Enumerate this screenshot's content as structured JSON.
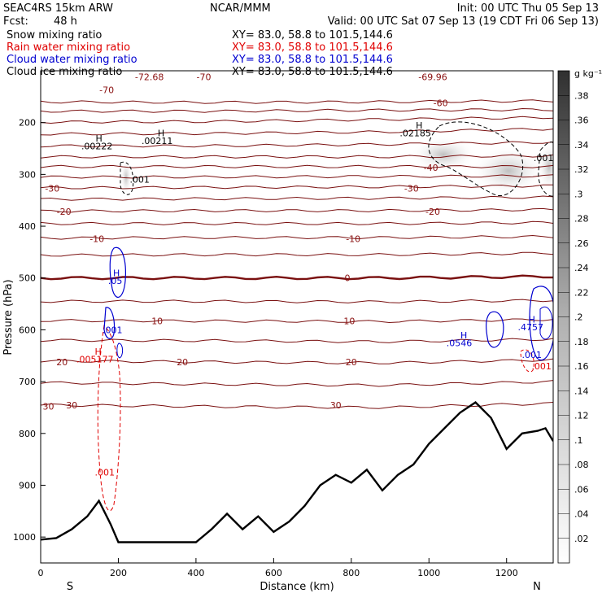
{
  "header": {
    "model": "SEAC4RS 15km ARW",
    "org": "NCAR/MMM",
    "init": "Init: 00 UTC Thu 05 Sep 13",
    "fcst_label": "Fcst:",
    "fcst_value": "48 h",
    "valid": "Valid: 00 UTC Sat 07 Sep 13 (19 CDT Fri 06 Sep 13)"
  },
  "fields": [
    {
      "name": "Snow mixing ratio",
      "xy": "XY=  83.0, 58.8 to 101.5,144.6",
      "color": "#000000"
    },
    {
      "name": "Rain water mixing ratio",
      "xy": "XY=  83.0, 58.8 to 101.5,144.6",
      "color": "#e00000"
    },
    {
      "name": "Cloud water mixing ratio",
      "xy": "XY=  83.0, 58.8 to 101.5,144.6",
      "color": "#0000d0"
    },
    {
      "name": "Cloud ice mixing ratio",
      "xy": "XY=  83.0, 58.8 to 101.5,144.6",
      "color": "#000000"
    }
  ],
  "chart_data": {
    "type": "cross-section",
    "xlabel": "Distance (km)",
    "ylabel": "Pressure (hPa)",
    "xlim": [
      0,
      1320
    ],
    "ylim": [
      1050,
      100
    ],
    "x_ticks": [
      0,
      200,
      400,
      600,
      800,
      1000,
      1200
    ],
    "y_ticks": [
      200,
      300,
      400,
      500,
      600,
      700,
      800,
      900,
      1000
    ],
    "x_end_labels": {
      "left": "S",
      "right": "N"
    },
    "colorbar": {
      "unit": "g kg⁻¹",
      "ticks": [
        ".02",
        ".04",
        ".06",
        ".08",
        ".1",
        ".12",
        ".14",
        ".16",
        ".18",
        ".2",
        ".22",
        ".24",
        ".26",
        ".28",
        ".3",
        ".32",
        ".34",
        ".36",
        ".38"
      ],
      "range": [
        0,
        0.4
      ]
    },
    "temperature_contours": {
      "color": "#7a1010",
      "interval_c": 5,
      "levels": [
        {
          "t": -70,
          "p": [
            160,
            161,
            160,
            158
          ]
        },
        {
          "t": -65,
          "p": [
            178,
            178,
            176,
            175
          ]
        },
        {
          "t": -60,
          "p": [
            199,
            198,
            194,
            190
          ]
        },
        {
          "t": -55,
          "p": [
            222,
            221,
            218,
            212
          ]
        },
        {
          "t": -50,
          "p": [
            245,
            245,
            242,
            238
          ]
        },
        {
          "t": -45,
          "p": [
            266,
            266,
            266,
            264
          ]
        },
        {
          "t": -40,
          "p": [
            285,
            285,
            285,
            285
          ]
        },
        {
          "t": -35,
          "p": [
            305,
            305,
            304,
            303
          ]
        },
        {
          "t": -30,
          "p": [
            326,
            325,
            324,
            322
          ]
        },
        {
          "t": -25,
          "p": [
            348,
            347,
            346,
            344
          ]
        },
        {
          "t": -20,
          "p": [
            371,
            370,
            370,
            368
          ]
        },
        {
          "t": -15,
          "p": [
            395,
            395,
            395,
            393
          ]
        },
        {
          "t": -10,
          "p": [
            423,
            422,
            422,
            420
          ]
        },
        {
          "t": -5,
          "p": [
            456,
            455,
            455,
            452
          ]
        },
        {
          "t": 0,
          "p": [
            500,
            500,
            500,
            497
          ]
        },
        {
          "t": 5,
          "p": [
            545,
            545,
            546,
            543
          ]
        },
        {
          "t": 10,
          "p": [
            582,
            583,
            584,
            580
          ]
        },
        {
          "t": 15,
          "p": [
            620,
            621,
            623,
            618
          ]
        },
        {
          "t": 20,
          "p": [
            660,
            662,
            664,
            658
          ]
        },
        {
          "t": 25,
          "p": [
            702,
            705,
            707,
            700
          ]
        },
        {
          "t": 30,
          "p": [
            745,
            748,
            750,
            742
          ]
        }
      ]
    },
    "temperature_labels": [
      {
        "text": "-70",
        "x": 170,
        "p": 137
      },
      {
        "text": "-72.68",
        "x": 280,
        "p": 112
      },
      {
        "text": "-70",
        "x": 420,
        "p": 112
      },
      {
        "text": "-69.96",
        "x": 1010,
        "p": 112
      },
      {
        "text": "-60",
        "x": 1030,
        "p": 162
      },
      {
        "text": "-40",
        "x": 1005,
        "p": 287
      },
      {
        "text": "-30",
        "x": 30,
        "p": 327
      },
      {
        "text": "-30",
        "x": 955,
        "p": 327
      },
      {
        "text": "-20",
        "x": 60,
        "p": 372
      },
      {
        "text": "-20",
        "x": 1010,
        "p": 372
      },
      {
        "text": "-10",
        "x": 145,
        "p": 424
      },
      {
        "text": "-10",
        "x": 805,
        "p": 424
      },
      {
        "text": "0",
        "x": 790,
        "p": 500
      },
      {
        "text": "10",
        "x": 300,
        "p": 583
      },
      {
        "text": "10",
        "x": 795,
        "p": 583
      },
      {
        "text": "20",
        "x": 55,
        "p": 662
      },
      {
        "text": "20",
        "x": 365,
        "p": 662
      },
      {
        "text": "20",
        "x": 800,
        "p": 662
      },
      {
        "text": "30",
        "x": 80,
        "p": 745
      },
      {
        "text": "30",
        "x": 760,
        "p": 745
      },
      {
        "text": "30",
        "x": 20,
        "p": 748
      }
    ],
    "terrain": {
      "color": "#000000",
      "x": [
        0,
        40,
        80,
        120,
        150,
        180,
        200,
        240,
        300,
        360,
        400,
        440,
        480,
        520,
        560,
        600,
        640,
        680,
        720,
        760,
        800,
        840,
        880,
        920,
        960,
        1000,
        1040,
        1080,
        1120,
        1160,
        1200,
        1240,
        1280,
        1300,
        1320
      ],
      "p": [
        1005,
        1002,
        985,
        960,
        930,
        975,
        1010,
        1010,
        1010,
        1010,
        1010,
        985,
        955,
        985,
        960,
        990,
        970,
        940,
        900,
        880,
        895,
        870,
        910,
        880,
        860,
        820,
        790,
        760,
        740,
        770,
        830,
        800,
        795,
        790,
        815
      ]
    },
    "snow_max_labels": [
      {
        "text": "H",
        "x": 150,
        "p": 230
      },
      {
        "text": ".00222",
        "x": 145,
        "p": 245
      },
      {
        "text": "H",
        "x": 310,
        "p": 220
      },
      {
        "text": ".00211",
        "x": 300,
        "p": 235
      },
      {
        "text": "H",
        "x": 975,
        "p": 205
      },
      {
        "text": ".02185",
        "x": 965,
        "p": 220
      },
      {
        "text": ".001",
        "x": 255,
        "p": 310
      },
      {
        "text": ".001",
        "x": 1295,
        "p": 268
      }
    ],
    "rain_labels": [
      {
        "text": "H",
        "x": 148,
        "p": 642
      },
      {
        "text": ".005177",
        "x": 140,
        "p": 657
      },
      {
        "text": ".001",
        "x": 165,
        "p": 875
      },
      {
        "text": ".001",
        "x": 1290,
        "p": 670
      }
    ],
    "cloud_water_labels": [
      {
        "text": "H",
        "x": 195,
        "p": 490
      },
      {
        "text": ".05",
        "x": 192,
        "p": 505
      },
      {
        "text": ".001",
        "x": 185,
        "p": 600
      },
      {
        "text": "H",
        "x": 1090,
        "p": 610
      },
      {
        "text": ".0546",
        "x": 1078,
        "p": 625
      },
      {
        "text": "H",
        "x": 1265,
        "p": 580
      },
      {
        "text": ".4757",
        "x": 1262,
        "p": 595
      },
      {
        "text": ".001",
        "x": 1265,
        "p": 648
      }
    ]
  }
}
